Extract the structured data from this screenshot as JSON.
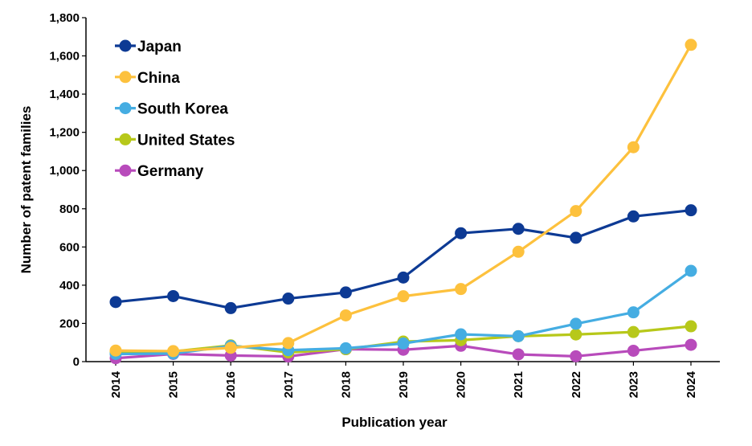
{
  "chart_data": {
    "type": "line",
    "title": "",
    "xlabel": "Publication year",
    "ylabel": "Number of patent families",
    "x": [
      "2014",
      "2015",
      "2016",
      "2017",
      "2018",
      "2019",
      "2020",
      "2021",
      "2022",
      "2023",
      "2024"
    ],
    "ylim": [
      0,
      1800
    ],
    "yticks": [
      0,
      200,
      400,
      600,
      800,
      1000,
      1200,
      1400,
      1600,
      1800
    ],
    "ytick_labels": [
      "0",
      "200",
      "400",
      "600",
      "800",
      "1,000",
      "1,200",
      "1,400",
      "1,600",
      "1,800"
    ],
    "grid": false,
    "legend_position": "top-left",
    "series": [
      {
        "name": "Japan",
        "color": "#0d3a94",
        "values": [
          312,
          343,
          280,
          330,
          362,
          440,
          672,
          695,
          648,
          760,
          792
        ]
      },
      {
        "name": "China",
        "color": "#fdc13d",
        "values": [
          58,
          55,
          72,
          97,
          242,
          342,
          380,
          575,
          788,
          1122,
          1658
        ]
      },
      {
        "name": "South Korea",
        "color": "#45ade2",
        "values": [
          40,
          42,
          82,
          60,
          70,
          95,
          143,
          133,
          198,
          258,
          475
        ]
      },
      {
        "name": "United States",
        "color": "#b7c81a",
        "values": [
          52,
          53,
          85,
          48,
          65,
          105,
          112,
          133,
          142,
          155,
          185
        ]
      },
      {
        "name": "Germany",
        "color": "#b84bbb",
        "values": [
          18,
          40,
          32,
          27,
          65,
          62,
          83,
          38,
          28,
          57,
          88
        ]
      }
    ]
  }
}
